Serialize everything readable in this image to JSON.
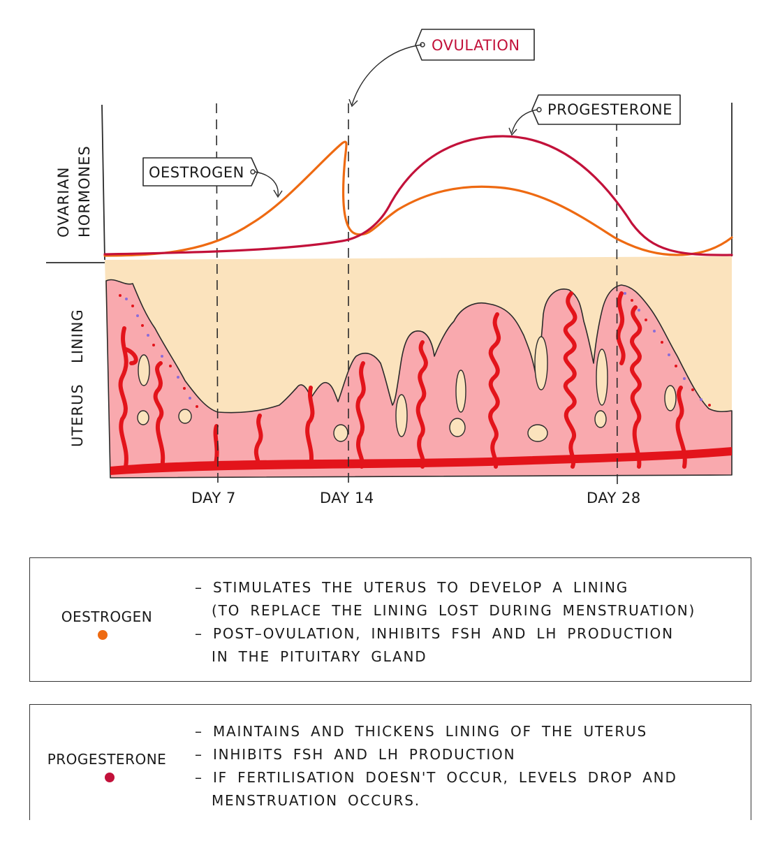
{
  "labels": {
    "ovulation": "OVULATION",
    "progesterone": "PROGESTERONE",
    "oestrogen": "OESTROGEN",
    "axis_top_1": "OVARIAN",
    "axis_top_2": "HORMONES",
    "axis_bottom_1": "UTERUS",
    "axis_bottom_2": "LINING",
    "day7": "DAY 7",
    "day14": "DAY 14",
    "day28": "DAY 28"
  },
  "colors": {
    "oestrogen": "#ee6a12",
    "progesterone": "#c2113a",
    "lining_bg": "#fbe3bd",
    "lining_tissue": "#f9a9ae",
    "vessel": "#e3141b"
  },
  "oestrogen_box": {
    "name": "OESTROGEN",
    "points": [
      "– STIMULATES THE UTERUS TO DEVELOP A LINING",
      "(TO REPLACE THE LINING LOST DURING MENSTRUATION)",
      "– POST–OVULATION, INHIBITS FSH AND LH PRODUCTION",
      "IN THE PITUITARY GLAND"
    ]
  },
  "progesterone_box": {
    "name": "PROGESTERONE",
    "points": [
      "– MAINTAINS AND THICKENS LINING OF THE UTERUS",
      "– INHIBITS FSH AND LH PRODUCTION",
      "– IF FERTILISATION DOESN'T OCCUR, LEVELS DROP AND",
      "MENSTRUATION OCCURS."
    ]
  }
}
